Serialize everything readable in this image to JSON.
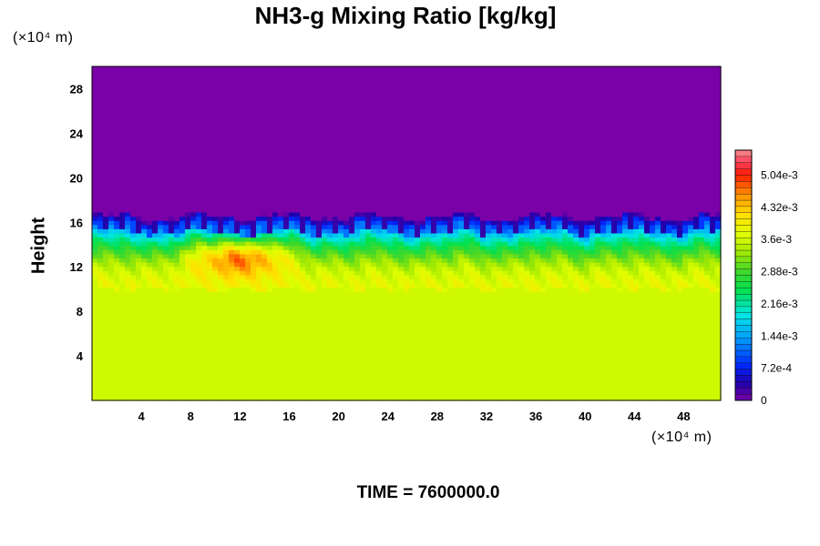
{
  "chart_data": {
    "type": "heatmap",
    "title": "NH3-g Mixing Ratio [kg/kg]",
    "ylabel": "Height",
    "y_unit_note": "(×10⁴ m)",
    "x_unit_note": "(×10⁴ m)",
    "xlim": [
      0,
      51
    ],
    "ylim": [
      0,
      30
    ],
    "x_ticks": [
      "4",
      "8",
      "12",
      "16",
      "20",
      "24",
      "28",
      "32",
      "36",
      "40",
      "44",
      "48"
    ],
    "y_ticks": [
      "4",
      "8",
      "12",
      "16",
      "20",
      "24",
      "28"
    ],
    "colorbar": {
      "min": 0,
      "max": 0.0056,
      "labels": [
        "0",
        "7.2e-4",
        "1.44e-3",
        "2.16e-3",
        "2.88e-3",
        "3.6e-3",
        "4.32e-3",
        "5.04e-3"
      ],
      "label_values": [
        0,
        0.00072,
        0.00144,
        0.00216,
        0.00288,
        0.0036,
        0.00432,
        0.00504
      ]
    },
    "field_description": {
      "upper_layer_value": 0,
      "lower_layer_value": 0.0036,
      "cloud_top_height": 16.5,
      "cloud_base_height": 10,
      "max_value": 0.0052,
      "max_location": [
        12,
        13
      ]
    }
  },
  "footer": {
    "time_label": "TIME = ",
    "time_value": "7600000.0"
  }
}
